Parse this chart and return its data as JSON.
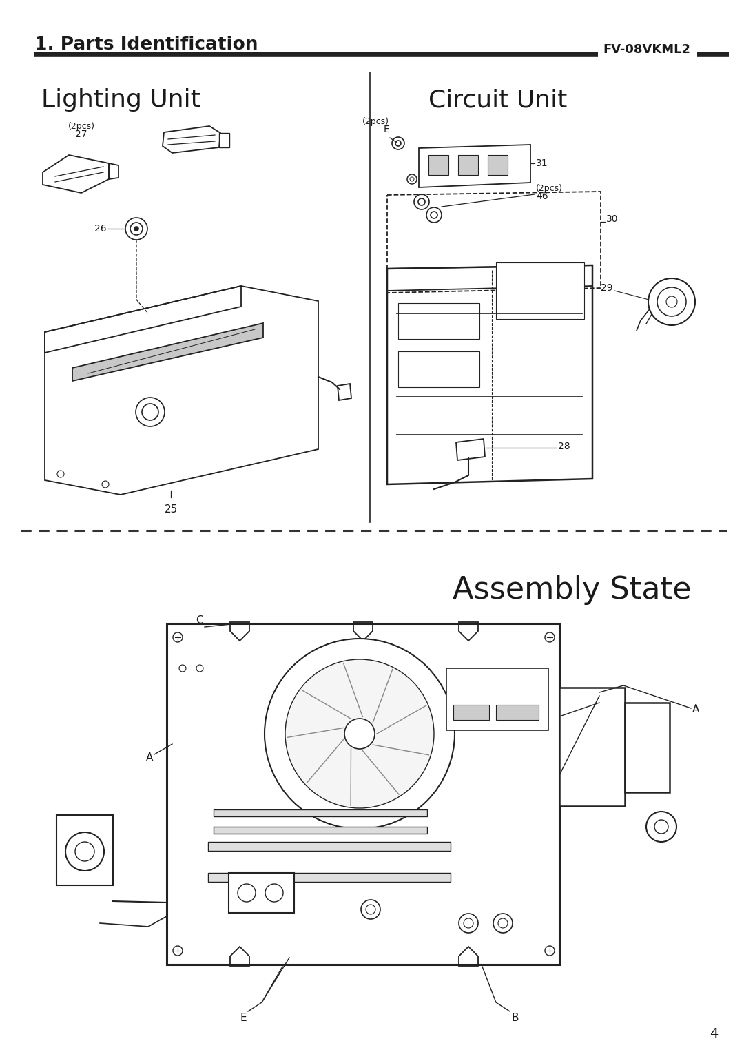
{
  "title_section": "1. Parts Identification",
  "model": "FV-08VKML2",
  "section1_left": "Lighting Unit",
  "section1_right": "Circuit Unit",
  "section2": "Assembly State",
  "page_number": "4",
  "bg_color": "#ffffff",
  "text_color": "#1a1a1a",
  "line_color": "#222222"
}
